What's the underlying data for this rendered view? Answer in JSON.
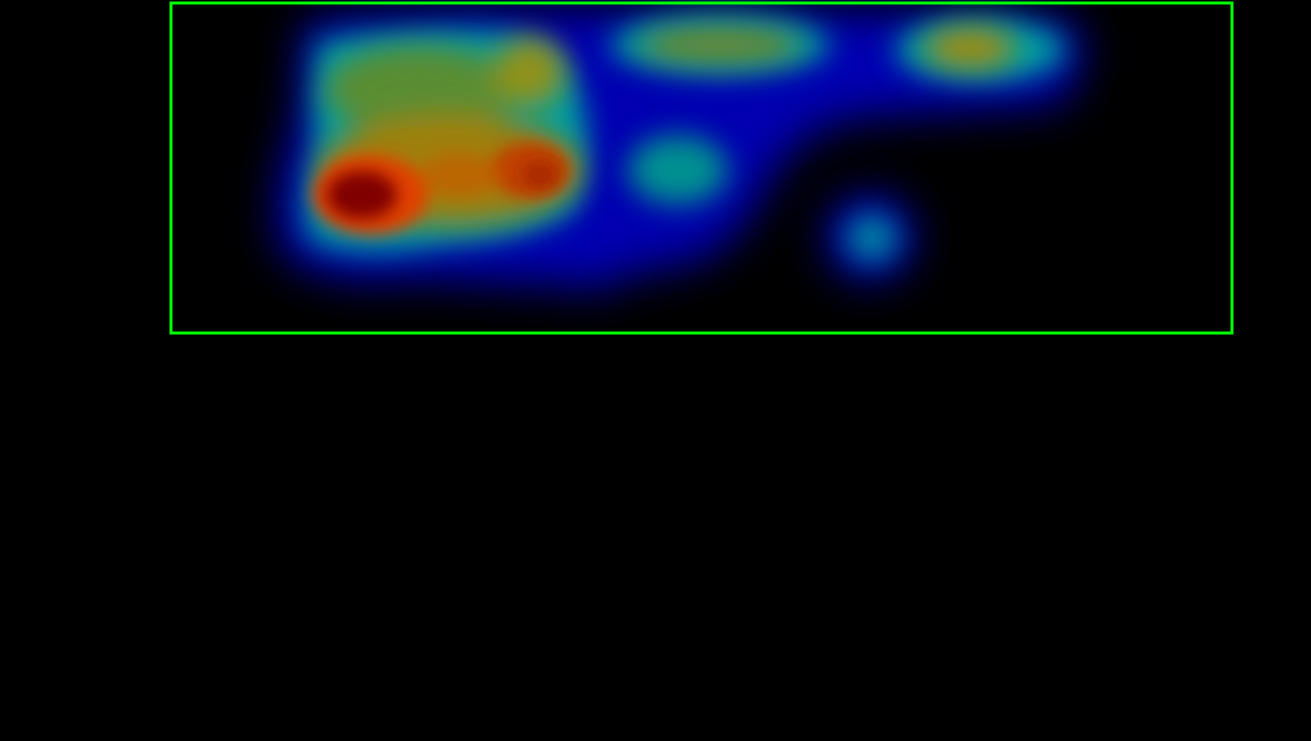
{
  "view": {
    "background_color": "#000000",
    "frame_color": "#00ff00"
  },
  "chart_data": {
    "type": "heatmap",
    "title": "",
    "xlabel": "",
    "ylabel": "",
    "color_scale": [
      "#000080",
      "#0000ff",
      "#008080",
      "#808000",
      "#ff8000",
      "#cc0000",
      "#800000"
    ],
    "hotspots": [
      {
        "name": "",
        "intensity": 1.0
      },
      {
        "name": "",
        "intensity": 0.75
      },
      {
        "name": "",
        "intensity": 0.55
      },
      {
        "name": "",
        "intensity": 0.5
      },
      {
        "name": "",
        "intensity": 0.45
      },
      {
        "name": "",
        "intensity": 0.4
      },
      {
        "name": "",
        "intensity": 0.35
      },
      {
        "name": "",
        "intensity": 0.3
      },
      {
        "name": "",
        "intensity": 0.25
      }
    ]
  }
}
